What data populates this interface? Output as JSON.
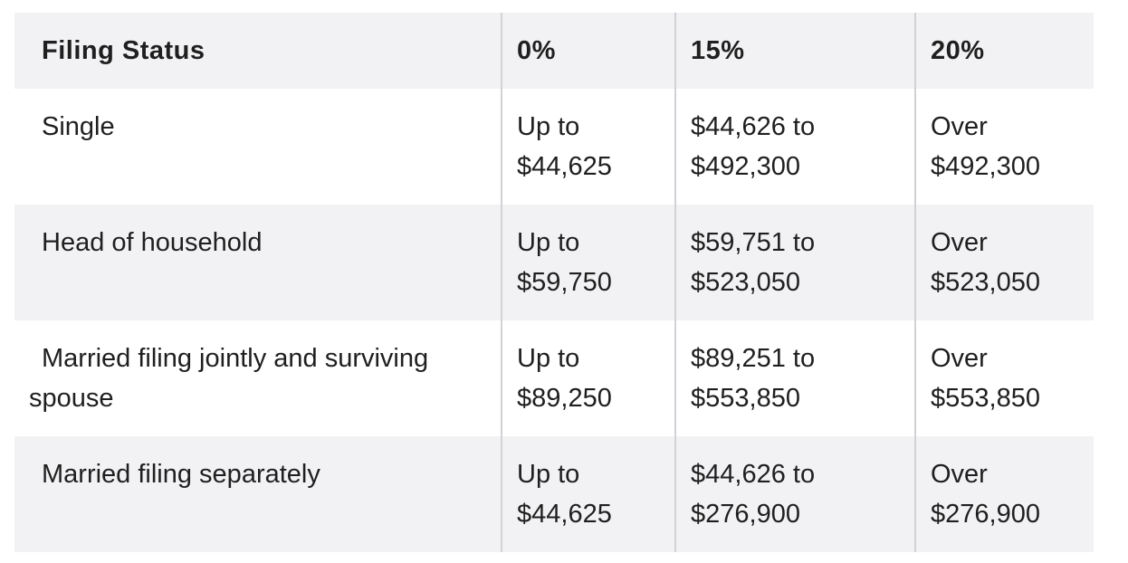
{
  "table": {
    "headers": [
      "Filing Status",
      "0%",
      "15%",
      "20%"
    ],
    "rows": [
      {
        "status": "Single",
        "rate_0": [
          "Up to",
          "$44,625"
        ],
        "rate_15": [
          "$44,626 to",
          "$492,300"
        ],
        "rate_20": [
          "Over",
          "$492,300"
        ]
      },
      {
        "status": "Head of household",
        "rate_0": [
          "Up to",
          "$59,750"
        ],
        "rate_15": [
          "$59,751 to",
          "$523,050"
        ],
        "rate_20": [
          "Over",
          "$523,050"
        ]
      },
      {
        "status": "Married filing jointly and surviving spouse",
        "rate_0": [
          "Up to",
          "$89,250"
        ],
        "rate_15": [
          "$89,251 to",
          "$553,850"
        ],
        "rate_20": [
          "Over",
          "$553,850"
        ]
      },
      {
        "status": "Married filing separately",
        "rate_0": [
          "Up to",
          "$44,625"
        ],
        "rate_15": [
          "$44,626 to",
          "$276,900"
        ],
        "rate_20": [
          "Over",
          "$276,900"
        ]
      }
    ]
  },
  "colors": {
    "header_bg": "#f2f2f4",
    "stripe_bg": "#f2f2f4",
    "divider": "#d2d2d6",
    "text": "#1f1f1f"
  }
}
